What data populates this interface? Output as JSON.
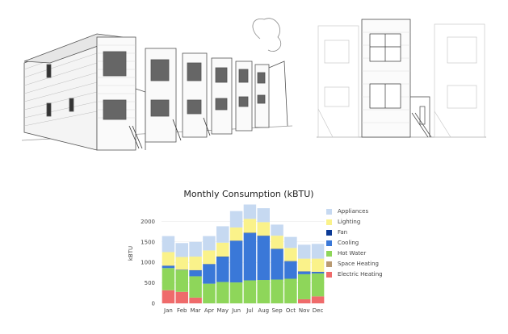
{
  "chart_data": {
    "type": "bar",
    "stacked": true,
    "title": "Monthly Consumption (kBTU)",
    "xlabel": "",
    "ylabel": "kBTU",
    "ylim": [
      0,
      2400
    ],
    "yticks": [
      0,
      500,
      1000,
      1500,
      2000
    ],
    "categories": [
      "Jan",
      "Feb",
      "Mar",
      "Apr",
      "May",
      "Jun",
      "Jul",
      "Aug",
      "Sep",
      "Oct",
      "Nov",
      "Dec"
    ],
    "legend_position": "right",
    "series": [
      {
        "name": "Electric Heating",
        "color": "#ef6b6b",
        "values": [
          320,
          280,
          140,
          0,
          0,
          0,
          0,
          0,
          0,
          0,
          100,
          170
        ]
      },
      {
        "name": "Space Heating",
        "color": "#b99a72",
        "values": [
          0,
          0,
          0,
          0,
          0,
          0,
          0,
          0,
          0,
          0,
          0,
          0
        ]
      },
      {
        "name": "Hot Water",
        "color": "#8ed65a",
        "values": [
          540,
          530,
          520,
          480,
          520,
          510,
          560,
          570,
          580,
          600,
          610,
          560
        ]
      },
      {
        "name": "Cooling",
        "color": "#3a78d8",
        "values": [
          50,
          0,
          140,
          470,
          610,
          1010,
          1150,
          1070,
          740,
          420,
          60,
          30
        ]
      },
      {
        "name": "Fan",
        "color": "#0b3a96",
        "values": [
          10,
          10,
          10,
          10,
          10,
          10,
          10,
          10,
          10,
          10,
          10,
          10
        ]
      },
      {
        "name": "Lighting",
        "color": "#faf28a",
        "values": [
          330,
          310,
          330,
          330,
          340,
          320,
          340,
          330,
          320,
          320,
          310,
          320
        ]
      },
      {
        "name": "Appliances",
        "color": "#c6d9f1",
        "values": [
          390,
          340,
          360,
          350,
          400,
          400,
          350,
          340,
          270,
          270,
          340,
          360
        ]
      }
    ]
  }
}
